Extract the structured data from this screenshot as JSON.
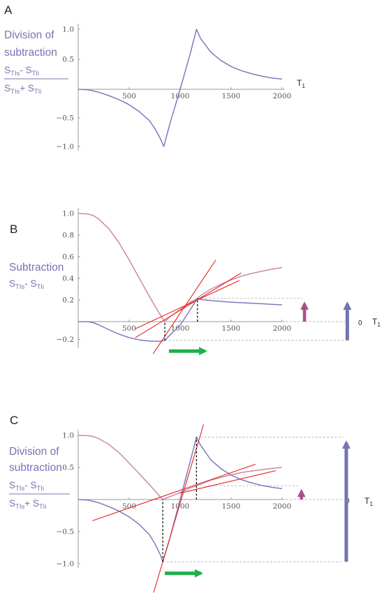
{
  "chart_data": [
    {
      "panel": "A",
      "type": "line",
      "ylabel_lines": [
        "Division of",
        "subtraction"
      ],
      "ylabel_fraction": {
        "numerator": [
          {
            "t": "S"
          },
          {
            "t": "TIs",
            "sub": true
          },
          {
            "t": "- S"
          },
          {
            "t": "TIi",
            "sub": true
          }
        ],
        "denominator": [
          {
            "t": "S"
          },
          {
            "t": "TIs",
            "sub": true
          },
          {
            "t": "+ S"
          },
          {
            "t": "TIi",
            "sub": true
          }
        ]
      },
      "xlabel": {
        "main": "T",
        "sub": "1"
      },
      "xticks": [
        "500",
        "1000",
        "1500",
        "2000"
      ],
      "yticks": [
        "1.0",
        "0.5",
        "−0.5",
        "−1.0"
      ],
      "xlim": [
        0,
        2000
      ],
      "ylim": [
        -1.0,
        1.0
      ],
      "series": [
        {
          "color": "#7b7bc0",
          "x": [
            0,
            100,
            200,
            300,
            400,
            500,
            600,
            700,
            750,
            800,
            840,
            900,
            1000,
            1100,
            1160,
            1200,
            1300,
            1400,
            1500,
            1600,
            1700,
            1800,
            1900,
            2000
          ],
          "y": [
            0,
            -0.01,
            -0.05,
            -0.11,
            -0.18,
            -0.27,
            -0.39,
            -0.55,
            -0.68,
            -0.84,
            -1.0,
            -0.6,
            0.0,
            0.6,
            1.0,
            0.85,
            0.62,
            0.48,
            0.38,
            0.31,
            0.26,
            0.22,
            0.19,
            0.17
          ]
        }
      ]
    },
    {
      "panel": "B",
      "type": "line",
      "ylabel_lines": [
        "Subtraction"
      ],
      "ylabel_expr": [
        {
          "t": "S"
        },
        {
          "t": "TIs",
          "sub": true
        },
        {
          "t": "- S"
        },
        {
          "t": "TIi",
          "sub": true
        }
      ],
      "xlabel": {
        "main": "T",
        "sub": "1"
      },
      "zero_label": "0",
      "xticks": [
        "500",
        "1000",
        "1500",
        "2000"
      ],
      "yticks": [
        "1.0",
        "0.8",
        "0.6",
        "0.4",
        "0.2",
        "−0.2"
      ],
      "xlim": [
        0,
        2000
      ],
      "ylim": [
        -0.25,
        1.0
      ],
      "series": [
        {
          "color": "#c98aa8",
          "x": [
            0,
            100,
            150,
            200,
            300,
            400,
            500,
            600,
            700,
            800,
            850,
            900,
            1000,
            1100,
            1170,
            1200,
            1300,
            1400,
            1500,
            1600,
            1700,
            1800,
            1900,
            2000
          ],
          "y": [
            1.0,
            0.995,
            0.98,
            0.95,
            0.86,
            0.73,
            0.57,
            0.4,
            0.23,
            0.07,
            0.0,
            0.045,
            0.11,
            0.18,
            0.215,
            0.24,
            0.3,
            0.345,
            0.385,
            0.42,
            0.445,
            0.465,
            0.485,
            0.5
          ]
        },
        {
          "color": "#7b7bc0",
          "x": [
            0,
            100,
            150,
            200,
            300,
            400,
            500,
            600,
            700,
            800,
            850,
            900,
            1000,
            1100,
            1170,
            1200,
            1300,
            1400,
            1500,
            1600,
            1700,
            1800,
            1900,
            2000
          ],
          "y": [
            0.0,
            -0.002,
            -0.012,
            -0.035,
            -0.09,
            -0.14,
            -0.18,
            -0.205,
            -0.218,
            -0.22,
            -0.21,
            -0.15,
            -0.04,
            0.11,
            0.215,
            0.205,
            0.195,
            0.187,
            0.18,
            0.175,
            0.17,
            0.165,
            0.16,
            0.155
          ]
        }
      ],
      "tangent_lines": [
        {
          "x": [
            735,
            1350
          ],
          "y": [
            -0.36,
            0.57
          ]
        },
        {
          "x": [
            560,
            1600
          ],
          "y": [
            -0.18,
            0.45
          ]
        },
        {
          "x": [
            560,
            1580
          ],
          "y": [
            -0.08,
            0.38
          ]
        }
      ],
      "guides_vertical": [
        {
          "x": 850,
          "y": [
            -0.21,
            0.0
          ]
        },
        {
          "x": 1170,
          "y": [
            0.0,
            0.215
          ]
        }
      ],
      "guides_horizontal": [
        {
          "y": 0.215,
          "x": [
            1170,
            2200
          ]
        },
        {
          "y": -0.21,
          "x": [
            850,
            2620
          ]
        },
        {
          "y": 0.0,
          "x": [
            2000,
            2620
          ]
        }
      ],
      "arrows": [
        {
          "color": "#a7508a",
          "x": 2220,
          "y": [
            0.0,
            0.215
          ]
        },
        {
          "color": "#7474b4",
          "x": 2640,
          "y": [
            -0.21,
            0.215
          ]
        },
        {
          "color": "#1eb14b",
          "horizontal": true,
          "x": [
            890,
            1290
          ],
          "y": -0.33
        }
      ]
    },
    {
      "panel": "C",
      "type": "line",
      "ylabel_lines": [
        "Division of",
        "subtraction"
      ],
      "ylabel_fraction": {
        "numerator": [
          {
            "t": "S"
          },
          {
            "t": "TIs",
            "sub": true
          },
          {
            "t": "- S"
          },
          {
            "t": "TIi",
            "sub": true
          }
        ],
        "denominator": [
          {
            "t": "S"
          },
          {
            "t": "TIs",
            "sub": true
          },
          {
            "t": "+ S"
          },
          {
            "t": "TIi",
            "sub": true
          }
        ]
      },
      "xlabel": {
        "main": "T",
        "sub": "1"
      },
      "zero_label": "0",
      "xticks": [
        "500",
        "1000",
        "1500",
        "2000"
      ],
      "yticks": [
        "1.0",
        "0.5",
        "−0.5",
        "−1.0"
      ],
      "xlim": [
        0,
        2000
      ],
      "ylim": [
        -1.0,
        1.0
      ],
      "series": [
        {
          "color": "#c98aa8",
          "x": [
            0,
            100,
            150,
            200,
            300,
            400,
            500,
            600,
            700,
            800,
            830,
            900,
            1000,
            1100,
            1160,
            1200,
            1300,
            1400,
            1500,
            1600,
            1700,
            1800,
            1900,
            2000
          ],
          "y": [
            1.0,
            0.995,
            0.98,
            0.95,
            0.86,
            0.73,
            0.57,
            0.4,
            0.23,
            0.05,
            0.0,
            0.045,
            0.11,
            0.18,
            0.215,
            0.24,
            0.3,
            0.345,
            0.385,
            0.42,
            0.445,
            0.465,
            0.485,
            0.5
          ]
        },
        {
          "color": "#7b7bc0",
          "x": [
            0,
            100,
            200,
            300,
            400,
            500,
            600,
            700,
            750,
            800,
            830,
            900,
            1000,
            1100,
            1160,
            1200,
            1300,
            1400,
            1500,
            1600,
            1700,
            1800,
            1900,
            2000
          ],
          "y": [
            0,
            -0.01,
            -0.05,
            -0.11,
            -0.18,
            -0.27,
            -0.39,
            -0.55,
            -0.68,
            -0.84,
            -0.97,
            -0.6,
            0.0,
            0.6,
            0.97,
            0.85,
            0.62,
            0.48,
            0.38,
            0.31,
            0.26,
            0.22,
            0.19,
            0.17
          ]
        }
      ],
      "tangent_lines": [
        {
          "x": [
            740,
            1230
          ],
          "y": [
            -1.45,
            1.17
          ]
        },
        {
          "x": [
            140,
            1740
          ],
          "y": [
            -0.33,
            0.55
          ]
        },
        {
          "x": [
            1000,
            1940
          ],
          "y": [
            0.1,
            0.45
          ]
        }
      ],
      "guides_vertical": [
        {
          "x": 830,
          "y": [
            -0.97,
            0.0
          ]
        },
        {
          "x": 1160,
          "y": [
            0.0,
            0.97
          ]
        }
      ],
      "guides_horizontal": [
        {
          "y": 0.97,
          "x": [
            1160,
            2600
          ]
        },
        {
          "y": 0.215,
          "x": [
            1160,
            2160
          ]
        },
        {
          "y": -0.97,
          "x": [
            830,
            2600
          ]
        },
        {
          "y": 0.0,
          "x": [
            2000,
            2600
          ]
        }
      ],
      "arrows": [
        {
          "color": "#a7508a",
          "x": 2190,
          "y": [
            0.0,
            0.215
          ]
        },
        {
          "color": "#7474b4",
          "x": 2630,
          "y": [
            -0.97,
            0.97
          ]
        },
        {
          "color": "#1eb14b",
          "horizontal": true,
          "x": [
            850,
            1250
          ],
          "y": -1.15
        }
      ]
    }
  ]
}
